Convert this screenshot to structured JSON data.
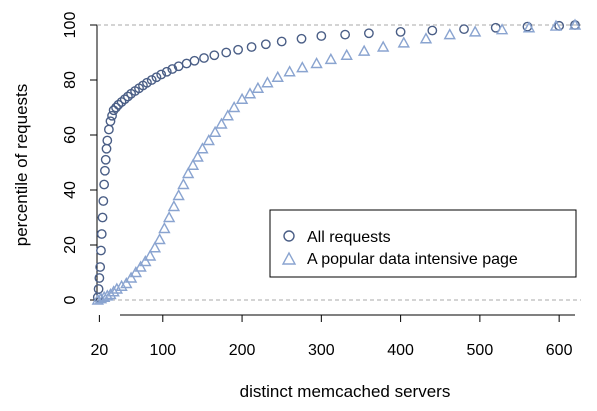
{
  "chart_data": {
    "type": "scatter",
    "xlabel": "distinct memcached servers",
    "ylabel": "percentile of requests",
    "xlim": [
      17,
      620
    ],
    "ylim": [
      0,
      100
    ],
    "x_ticks": [
      "20",
      "100",
      "200",
      "300",
      "400",
      "500",
      "600"
    ],
    "y_ticks": [
      "0",
      "20",
      "40",
      "60",
      "80",
      "100"
    ],
    "reference_lines_y": [
      0,
      100
    ],
    "legend_position": "bottom-right",
    "grid": false,
    "series": [
      {
        "name": "All requests",
        "marker": "circle",
        "color": "#4a5e86",
        "points": [
          [
            18,
            1
          ],
          [
            19,
            4
          ],
          [
            20,
            8
          ],
          [
            21,
            12
          ],
          [
            22,
            18
          ],
          [
            23,
            24
          ],
          [
            24,
            30
          ],
          [
            25,
            36
          ],
          [
            26,
            42
          ],
          [
            27,
            47
          ],
          [
            28,
            51
          ],
          [
            29,
            55
          ],
          [
            30,
            58
          ],
          [
            32,
            62
          ],
          [
            34,
            65
          ],
          [
            36,
            67
          ],
          [
            38,
            69
          ],
          [
            41,
            70
          ],
          [
            44,
            71
          ],
          [
            48,
            72
          ],
          [
            52,
            73
          ],
          [
            56,
            74
          ],
          [
            60,
            75
          ],
          [
            65,
            76
          ],
          [
            70,
            77
          ],
          [
            75,
            78
          ],
          [
            80,
            79
          ],
          [
            86,
            80
          ],
          [
            92,
            81
          ],
          [
            98,
            82
          ],
          [
            105,
            83
          ],
          [
            112,
            84
          ],
          [
            120,
            85
          ],
          [
            130,
            86
          ],
          [
            140,
            87
          ],
          [
            152,
            88
          ],
          [
            165,
            89
          ],
          [
            180,
            90
          ],
          [
            195,
            91
          ],
          [
            212,
            92
          ],
          [
            230,
            93
          ],
          [
            250,
            94
          ],
          [
            275,
            95
          ],
          [
            300,
            96
          ],
          [
            330,
            96.5
          ],
          [
            360,
            97
          ],
          [
            400,
            97.5
          ],
          [
            440,
            98
          ],
          [
            480,
            98.5
          ],
          [
            520,
            99
          ],
          [
            560,
            99.4
          ],
          [
            600,
            99.7
          ],
          [
            620,
            100
          ]
        ]
      },
      {
        "name": "A popular data intensive page",
        "marker": "triangle",
        "color": "#8aa4d0",
        "points": [
          [
            18,
            0
          ],
          [
            22,
            0.5
          ],
          [
            26,
            1
          ],
          [
            30,
            1.5
          ],
          [
            34,
            2
          ],
          [
            38,
            3
          ],
          [
            42,
            4
          ],
          [
            48,
            5
          ],
          [
            54,
            6
          ],
          [
            60,
            8
          ],
          [
            66,
            10
          ],
          [
            72,
            12
          ],
          [
            78,
            14
          ],
          [
            84,
            16
          ],
          [
            90,
            19
          ],
          [
            96,
            22
          ],
          [
            102,
            26
          ],
          [
            108,
            30
          ],
          [
            114,
            34
          ],
          [
            120,
            38
          ],
          [
            126,
            42
          ],
          [
            132,
            46
          ],
          [
            138,
            49
          ],
          [
            144,
            52
          ],
          [
            150,
            55
          ],
          [
            158,
            58
          ],
          [
            166,
            61
          ],
          [
            174,
            64
          ],
          [
            182,
            67
          ],
          [
            190,
            70
          ],
          [
            200,
            73
          ],
          [
            210,
            75
          ],
          [
            220,
            77
          ],
          [
            232,
            79
          ],
          [
            245,
            81
          ],
          [
            260,
            83
          ],
          [
            276,
            84.5
          ],
          [
            294,
            86
          ],
          [
            312,
            87.5
          ],
          [
            332,
            89
          ],
          [
            354,
            90.5
          ],
          [
            378,
            92
          ],
          [
            404,
            93.5
          ],
          [
            432,
            95
          ],
          [
            462,
            96.5
          ],
          [
            494,
            97.5
          ],
          [
            528,
            98.3
          ],
          [
            562,
            99
          ],
          [
            596,
            99.6
          ],
          [
            620,
            100
          ]
        ]
      }
    ]
  }
}
